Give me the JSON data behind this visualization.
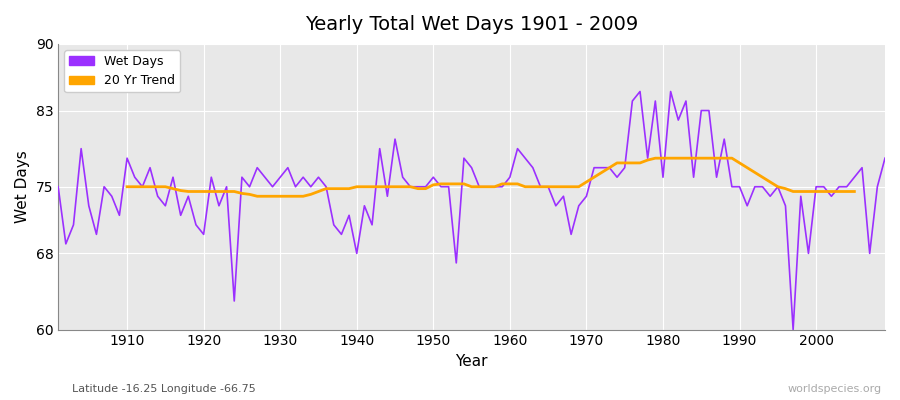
{
  "title": "Yearly Total Wet Days 1901 - 2009",
  "xlabel": "Year",
  "ylabel": "Wet Days",
  "subtitle": "Latitude -16.25 Longitude -66.75",
  "watermark": "worldspecies.org",
  "legend_labels": [
    "Wet Days",
    "20 Yr Trend"
  ],
  "wet_days_color": "#9B30FF",
  "trend_color": "#FFA500",
  "background_color": "#E8E8E8",
  "ylim": [
    60,
    90
  ],
  "yticks": [
    60,
    68,
    75,
    83,
    90
  ],
  "xlim": [
    1901,
    2009
  ],
  "years": [
    1901,
    1902,
    1903,
    1904,
    1905,
    1906,
    1907,
    1908,
    1909,
    1910,
    1911,
    1912,
    1913,
    1914,
    1915,
    1916,
    1917,
    1918,
    1919,
    1920,
    1921,
    1922,
    1923,
    1924,
    1925,
    1926,
    1927,
    1928,
    1929,
    1930,
    1931,
    1932,
    1933,
    1934,
    1935,
    1936,
    1937,
    1938,
    1939,
    1940,
    1941,
    1942,
    1943,
    1944,
    1945,
    1946,
    1947,
    1948,
    1949,
    1950,
    1951,
    1952,
    1953,
    1954,
    1955,
    1956,
    1957,
    1958,
    1959,
    1960,
    1961,
    1962,
    1963,
    1964,
    1965,
    1966,
    1967,
    1968,
    1969,
    1970,
    1971,
    1972,
    1973,
    1974,
    1975,
    1976,
    1977,
    1978,
    1979,
    1980,
    1981,
    1982,
    1983,
    1984,
    1985,
    1986,
    1987,
    1988,
    1989,
    1990,
    1991,
    1992,
    1993,
    1994,
    1995,
    1996,
    1997,
    1998,
    1999,
    2000,
    2001,
    2002,
    2003,
    2004,
    2005,
    2006,
    2007,
    2008,
    2009
  ],
  "wet_days": [
    75,
    69,
    71,
    79,
    73,
    70,
    75,
    74,
    72,
    78,
    76,
    75,
    77,
    74,
    73,
    76,
    72,
    74,
    71,
    70,
    76,
    73,
    75,
    63,
    76,
    75,
    77,
    76,
    75,
    76,
    77,
    75,
    76,
    75,
    76,
    75,
    71,
    70,
    72,
    68,
    73,
    71,
    79,
    74,
    80,
    76,
    75,
    75,
    75,
    76,
    75,
    75,
    67,
    78,
    77,
    75,
    75,
    75,
    75,
    76,
    79,
    78,
    77,
    75,
    75,
    73,
    74,
    70,
    73,
    74,
    77,
    77,
    77,
    76,
    77,
    84,
    85,
    78,
    84,
    76,
    85,
    82,
    84,
    76,
    83,
    83,
    76,
    80,
    75,
    75,
    73,
    75,
    75,
    74,
    75,
    73,
    60,
    74,
    68,
    75,
    75,
    74,
    75,
    75,
    76,
    77,
    68,
    75,
    78
  ],
  "trend_years": [
    1910,
    1911,
    1912,
    1913,
    1914,
    1915,
    1916,
    1917,
    1918,
    1919,
    1920,
    1921,
    1922,
    1923,
    1924,
    1925,
    1926,
    1927,
    1928,
    1929,
    1930,
    1931,
    1932,
    1933,
    1934,
    1935,
    1936,
    1937,
    1938,
    1939,
    1940,
    1941,
    1942,
    1943,
    1944,
    1945,
    1946,
    1947,
    1948,
    1949,
    1950,
    1951,
    1952,
    1953,
    1954,
    1955,
    1956,
    1957,
    1958,
    1959,
    1960,
    1961,
    1962,
    1963,
    1964,
    1965,
    1966,
    1967,
    1968,
    1969,
    1970,
    1971,
    1972,
    1973,
    1974,
    1975,
    1976,
    1977,
    1978,
    1979,
    1980,
    1981,
    1982,
    1983,
    1984,
    1985,
    1986,
    1987,
    1988,
    1989,
    1990,
    1991,
    1992,
    1993,
    1994,
    1995,
    1996,
    1997,
    1998,
    1999,
    2000,
    2001,
    2002,
    2003,
    2004,
    2005
  ],
  "trend_values": [
    75.0,
    75.0,
    75.0,
    75.0,
    75.0,
    75.0,
    74.8,
    74.6,
    74.5,
    74.5,
    74.5,
    74.5,
    74.5,
    74.5,
    74.5,
    74.3,
    74.2,
    74.0,
    74.0,
    74.0,
    74.0,
    74.0,
    74.0,
    74.0,
    74.2,
    74.5,
    74.8,
    74.8,
    74.8,
    74.8,
    75.0,
    75.0,
    75.0,
    75.0,
    75.0,
    75.0,
    75.0,
    75.0,
    74.8,
    74.8,
    75.2,
    75.3,
    75.3,
    75.3,
    75.3,
    75.0,
    75.0,
    75.0,
    75.0,
    75.3,
    75.3,
    75.3,
    75.0,
    75.0,
    75.0,
    75.0,
    75.0,
    75.0,
    75.0,
    75.0,
    75.5,
    76.0,
    76.5,
    77.0,
    77.5,
    77.5,
    77.5,
    77.5,
    77.8,
    78.0,
    78.0,
    78.0,
    78.0,
    78.0,
    78.0,
    78.0,
    78.0,
    78.0,
    78.0,
    78.0,
    77.5,
    77.0,
    76.5,
    76.0,
    75.5,
    75.0,
    74.8,
    74.5,
    74.5,
    74.5,
    74.5,
    74.5,
    74.5,
    74.5,
    74.5,
    74.5
  ]
}
